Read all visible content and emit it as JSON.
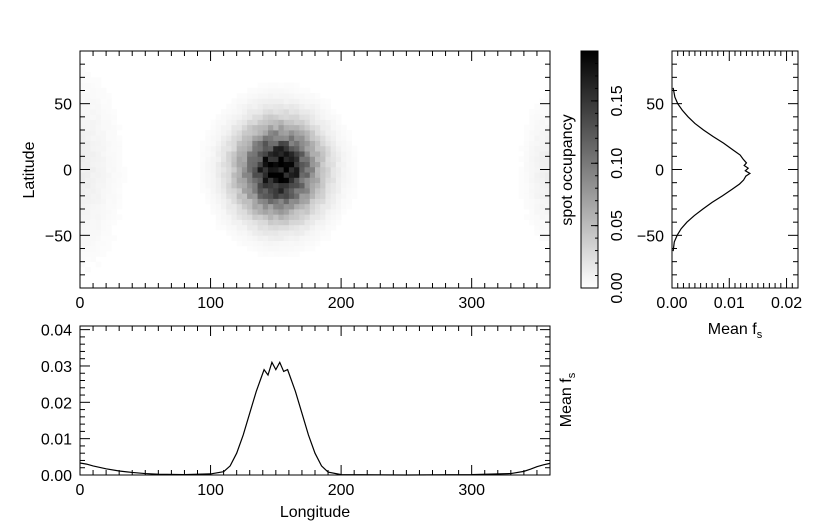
{
  "chart_data": [
    {
      "id": "map",
      "type": "heatmap",
      "ylabel": "Latitude",
      "xlim": [
        0,
        360
      ],
      "ylim": [
        -90,
        90
      ],
      "xticks": [
        "0",
        "100",
        "200",
        "300"
      ],
      "yticks": [
        "50",
        "0",
        "−50"
      ],
      "blobs": [
        {
          "lon": 152,
          "lat": 0,
          "sigma_lon": 20,
          "sigma_lat": 22,
          "peak": 0.19
        },
        {
          "lon": 0,
          "lat": 0,
          "sigma_lon": 18,
          "sigma_lat": 40,
          "peak": 0.012
        },
        {
          "lon": 360,
          "lat": 0,
          "sigma_lon": 12,
          "sigma_lat": 30,
          "peak": 0.012
        }
      ]
    },
    {
      "id": "colorbar",
      "type": "colorbar",
      "label": "spot occupancy",
      "range": [
        0,
        0.19
      ],
      "ticks": [
        {
          "value": 0.0,
          "label": "0.00"
        },
        {
          "value": 0.05,
          "label": "0.05"
        },
        {
          "value": 0.1,
          "label": "0.10"
        },
        {
          "value": 0.15,
          "label": "0.15"
        }
      ]
    },
    {
      "id": "lat_profile",
      "type": "line",
      "xlabel": "Mean f",
      "xlabel_sub": "s",
      "xlim": [
        0,
        0.022
      ],
      "ylim": [
        -90,
        90
      ],
      "xticks": [
        {
          "value": 0.0,
          "label": "0.00"
        },
        {
          "value": 0.01,
          "label": "0.01"
        },
        {
          "value": 0.02,
          "label": "0.02"
        }
      ],
      "yticks": [
        {
          "value": 50,
          "label": "50"
        },
        {
          "value": 0,
          "label": "0"
        },
        {
          "value": -50,
          "label": "−50"
        }
      ],
      "x": [
        0.0002,
        0.0005,
        0.001,
        0.0018,
        0.0028,
        0.004,
        0.0055,
        0.0072,
        0.009,
        0.0106,
        0.0119,
        0.0124,
        0.013,
        0.0126,
        0.0133,
        0.0128,
        0.0136,
        0.0129,
        0.0125,
        0.0118,
        0.0105,
        0.0088,
        0.007,
        0.0054,
        0.0039,
        0.0026,
        0.0016,
        0.0009,
        0.0004,
        0.0002
      ],
      "y": [
        62,
        55,
        50,
        45,
        40,
        35,
        30,
        25,
        20,
        15,
        11,
        8,
        5,
        3,
        1,
        -1,
        -3,
        -5,
        -8,
        -11,
        -15,
        -20,
        -25,
        -30,
        -35,
        -40,
        -45,
        -50,
        -55,
        -62
      ]
    },
    {
      "id": "lon_profile",
      "type": "line",
      "xlabel": "Longitude",
      "ylabel": "Mean f",
      "ylabel_sub": "s",
      "xlim": [
        0,
        360
      ],
      "ylim": [
        0,
        0.041
      ],
      "xticks": [
        {
          "value": 0,
          "label": "0"
        },
        {
          "value": 100,
          "label": "100"
        },
        {
          "value": 200,
          "label": "200"
        },
        {
          "value": 300,
          "label": "300"
        }
      ],
      "yticks": [
        {
          "value": 0.0,
          "label": "0.00"
        },
        {
          "value": 0.01,
          "label": "0.01"
        },
        {
          "value": 0.02,
          "label": "0.02"
        },
        {
          "value": 0.03,
          "label": "0.03"
        },
        {
          "value": 0.04,
          "label": "0.04"
        }
      ],
      "x": [
        0,
        5,
        10,
        20,
        30,
        40,
        50,
        60,
        80,
        100,
        110,
        115,
        120,
        125,
        130,
        135,
        138,
        141,
        144,
        147,
        150,
        153,
        156,
        159,
        162,
        165,
        170,
        175,
        180,
        185,
        190,
        200,
        250,
        300,
        330,
        340,
        345,
        350,
        355,
        360
      ],
      "y": [
        0.0033,
        0.003,
        0.0025,
        0.0017,
        0.0011,
        0.0007,
        0.0004,
        0.0002,
        0.0001,
        0.0003,
        0.0009,
        0.0025,
        0.006,
        0.011,
        0.017,
        0.023,
        0.026,
        0.029,
        0.0275,
        0.031,
        0.029,
        0.031,
        0.0285,
        0.029,
        0.026,
        0.023,
        0.017,
        0.011,
        0.006,
        0.0025,
        0.0008,
        0.0001,
        0.0,
        0.0001,
        0.0004,
        0.001,
        0.0016,
        0.0023,
        0.0028,
        0.0032
      ]
    }
  ]
}
